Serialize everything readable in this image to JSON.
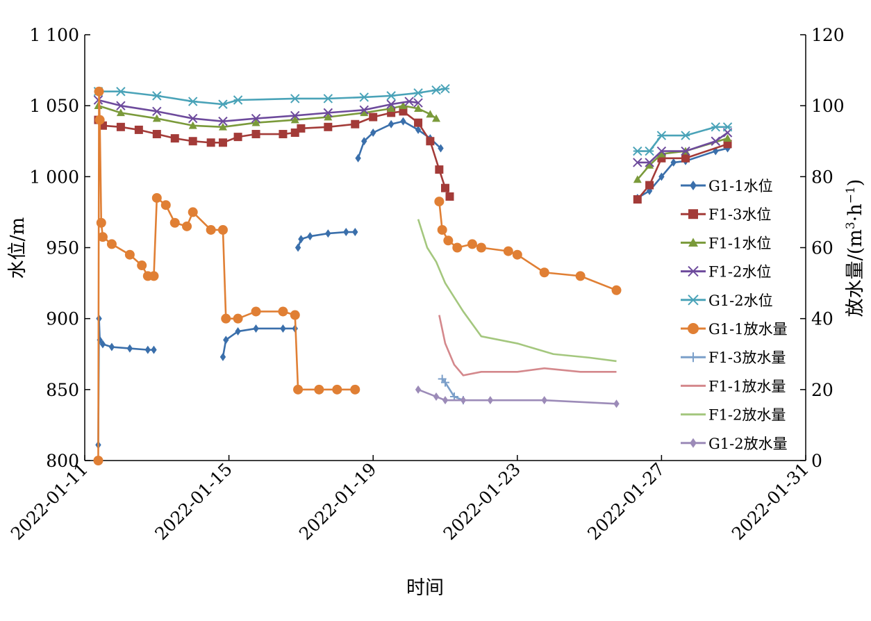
{
  "chart_data": {
    "type": "line",
    "xlabel": "时间",
    "ylabel_left": "水位/m",
    "ylabel_right_prefix": "放水量/(m",
    "ylabel_right_sup1": "3",
    "ylabel_right_mid": "·h",
    "ylabel_right_sup2": "−1",
    "ylabel_right_suffix": ")",
    "x_range": [
      "2022-01-11",
      "2022-01-31"
    ],
    "x_ticks": [
      "2022-01-11",
      "2022-01-15",
      "2022-01-19",
      "2022-01-23",
      "2022-01-27",
      "2022-01-31"
    ],
    "ylim_left": [
      800,
      1100
    ],
    "ylim_right": [
      0,
      120
    ],
    "y_ticks_left": [
      {
        "value": 800,
        "label": "800"
      },
      {
        "value": 850,
        "label": "850"
      },
      {
        "value": 900,
        "label": "900"
      },
      {
        "value": 950,
        "label": "950"
      },
      {
        "value": 1000,
        "label": "1 000"
      },
      {
        "value": 1050,
        "label": "1 050"
      },
      {
        "value": 1100,
        "label": "1 100"
      }
    ],
    "y_ticks_right": [
      {
        "value": 0,
        "label": "0"
      },
      {
        "value": 20,
        "label": "20"
      },
      {
        "value": 40,
        "label": "40"
      },
      {
        "value": 60,
        "label": "60"
      },
      {
        "value": 80,
        "label": "80"
      },
      {
        "value": 100,
        "label": "100"
      },
      {
        "value": 120,
        "label": "120"
      }
    ],
    "grid": false,
    "legend_position": "right",
    "series": [
      {
        "name": "G1-1水位",
        "axis": "left",
        "color": "#3a6fab",
        "marker": "diamond",
        "segments": [
          [
            [
              "2022-01-11 09:00",
              811
            ],
            [
              "2022-01-11 09:30",
              900
            ],
            [
              "2022-01-11 10:00",
              885
            ],
            [
              "2022-01-11 12:00",
              882
            ],
            [
              "2022-01-11 18:00",
              880
            ],
            [
              "2022-01-12 06:00",
              879
            ],
            [
              "2022-01-12 18:00",
              878
            ],
            [
              "2022-01-12 22:00",
              878
            ]
          ],
          [
            [
              "2022-01-14 20:00",
              873
            ],
            [
              "2022-01-14 22:00",
              885
            ],
            [
              "2022-01-15 06:00",
              891
            ],
            [
              "2022-01-15 18:00",
              893
            ],
            [
              "2022-01-16 12:00",
              893
            ],
            [
              "2022-01-16 20:00",
              893
            ]
          ],
          [
            [
              "2022-01-16 22:00",
              950
            ],
            [
              "2022-01-17 00:00",
              956
            ],
            [
              "2022-01-17 06:00",
              958
            ],
            [
              "2022-01-17 18:00",
              960
            ],
            [
              "2022-01-18 06:00",
              961
            ],
            [
              "2022-01-18 12:00",
              961
            ]
          ],
          [
            [
              "2022-01-18 14:00",
              1013
            ],
            [
              "2022-01-18 18:00",
              1025
            ],
            [
              "2022-01-19 00:00",
              1031
            ],
            [
              "2022-01-19 12:00",
              1037
            ],
            [
              "2022-01-19 20:00",
              1039
            ],
            [
              "2022-01-20 06:00",
              1033
            ],
            [
              "2022-01-20 14:00",
              1027
            ],
            [
              "2022-01-20 21:00",
              1020
            ]
          ],
          [
            [
              "2022-01-26 08:00",
              985
            ],
            [
              "2022-01-26 16:00",
              990
            ],
            [
              "2022-01-27 00:00",
              1000
            ],
            [
              "2022-01-27 08:00",
              1010
            ],
            [
              "2022-01-27 16:00",
              1011
            ],
            [
              "2022-01-28 12:00",
              1018
            ],
            [
              "2022-01-28 20:00",
              1020
            ]
          ]
        ]
      },
      {
        "name": "F1-3水位",
        "axis": "left",
        "color": "#a33b38",
        "marker": "square",
        "segments": [
          [
            [
              "2022-01-11 09:00",
              1040
            ],
            [
              "2022-01-11 12:00",
              1036
            ],
            [
              "2022-01-12 00:00",
              1035
            ],
            [
              "2022-01-12 12:00",
              1033
            ],
            [
              "2022-01-13 00:00",
              1030
            ],
            [
              "2022-01-13 12:00",
              1027
            ],
            [
              "2022-01-14 00:00",
              1025
            ],
            [
              "2022-01-14 12:00",
              1024
            ],
            [
              "2022-01-14 20:00",
              1024
            ],
            [
              "2022-01-15 06:00",
              1028
            ],
            [
              "2022-01-15 18:00",
              1030
            ],
            [
              "2022-01-16 12:00",
              1030
            ],
            [
              "2022-01-16 20:00",
              1031
            ],
            [
              "2022-01-17 00:00",
              1034
            ],
            [
              "2022-01-17 18:00",
              1035
            ],
            [
              "2022-01-18 12:00",
              1037
            ],
            [
              "2022-01-19 00:00",
              1042
            ],
            [
              "2022-01-19 12:00",
              1045
            ],
            [
              "2022-01-19 20:00",
              1046
            ],
            [
              "2022-01-20 06:00",
              1038
            ],
            [
              "2022-01-20 14:00",
              1025
            ],
            [
              "2022-01-20 20:00",
              1005
            ],
            [
              "2022-01-21 00:00",
              992
            ],
            [
              "2022-01-21 03:00",
              986
            ]
          ],
          [
            [
              "2022-01-26 08:00",
              984
            ],
            [
              "2022-01-26 16:00",
              994
            ],
            [
              "2022-01-27 00:00",
              1013
            ],
            [
              "2022-01-27 16:00",
              1013
            ],
            [
              "2022-01-28 20:00",
              1023
            ]
          ]
        ]
      },
      {
        "name": "F1-1水位",
        "axis": "left",
        "color": "#7a9a3a",
        "marker": "triangle",
        "segments": [
          [
            [
              "2022-01-11 09:00",
              1050
            ],
            [
              "2022-01-12 00:00",
              1045
            ],
            [
              "2022-01-13 00:00",
              1041
            ],
            [
              "2022-01-14 00:00",
              1036
            ],
            [
              "2022-01-14 20:00",
              1035
            ],
            [
              "2022-01-15 18:00",
              1038
            ],
            [
              "2022-01-16 20:00",
              1040
            ],
            [
              "2022-01-17 18:00",
              1042
            ],
            [
              "2022-01-18 18:00",
              1045
            ],
            [
              "2022-01-19 12:00",
              1048
            ],
            [
              "2022-01-19 20:00",
              1050
            ],
            [
              "2022-01-20 06:00",
              1048
            ],
            [
              "2022-01-20 14:00",
              1044
            ],
            [
              "2022-01-20 18:00",
              1041
            ]
          ],
          [
            [
              "2022-01-26 08:00",
              998
            ],
            [
              "2022-01-26 16:00",
              1008
            ],
            [
              "2022-01-27 00:00",
              1016
            ],
            [
              "2022-01-27 16:00",
              1018
            ],
            [
              "2022-01-28 20:00",
              1027
            ]
          ]
        ]
      },
      {
        "name": "F1-2水位",
        "axis": "left",
        "color": "#6d4a9c",
        "marker": "x",
        "segments": [
          [
            [
              "2022-01-11 09:00",
              1054
            ],
            [
              "2022-01-12 00:00",
              1050
            ],
            [
              "2022-01-13 00:00",
              1046
            ],
            [
              "2022-01-14 00:00",
              1041
            ],
            [
              "2022-01-14 20:00",
              1039
            ],
            [
              "2022-01-15 18:00",
              1041
            ],
            [
              "2022-01-16 20:00",
              1043
            ],
            [
              "2022-01-17 18:00",
              1045
            ],
            [
              "2022-01-18 18:00",
              1047
            ],
            [
              "2022-01-19 12:00",
              1051
            ],
            [
              "2022-01-20 00:00",
              1053
            ],
            [
              "2022-01-20 06:00",
              1052
            ]
          ],
          [
            [
              "2022-01-26 08:00",
              1010
            ],
            [
              "2022-01-26 16:00",
              1010
            ],
            [
              "2022-01-27 00:00",
              1018
            ],
            [
              "2022-01-27 16:00",
              1018
            ],
            [
              "2022-01-28 12:00",
              1025
            ],
            [
              "2022-01-28 20:00",
              1031
            ]
          ]
        ]
      },
      {
        "name": "G1-2水位",
        "axis": "left",
        "color": "#4aa3b8",
        "marker": "asterisk",
        "segments": [
          [
            [
              "2022-01-11 09:00",
              1060
            ],
            [
              "2022-01-12 00:00",
              1060
            ],
            [
              "2022-01-13 00:00",
              1057
            ],
            [
              "2022-01-14 00:00",
              1053
            ],
            [
              "2022-01-14 20:00",
              1051
            ],
            [
              "2022-01-15 06:00",
              1054
            ],
            [
              "2022-01-16 20:00",
              1055
            ],
            [
              "2022-01-17 18:00",
              1055
            ],
            [
              "2022-01-18 18:00",
              1056
            ],
            [
              "2022-01-19 12:00",
              1057
            ],
            [
              "2022-01-20 06:00",
              1059
            ],
            [
              "2022-01-20 18:00",
              1061
            ],
            [
              "2022-01-21 00:00",
              1062
            ]
          ],
          [
            [
              "2022-01-26 08:00",
              1018
            ],
            [
              "2022-01-26 16:00",
              1018
            ],
            [
              "2022-01-27 00:00",
              1029
            ],
            [
              "2022-01-27 16:00",
              1029
            ],
            [
              "2022-01-28 12:00",
              1035
            ],
            [
              "2022-01-28 20:00",
              1035
            ]
          ]
        ]
      },
      {
        "name": "G1-1放水量",
        "axis": "right",
        "color": "#e07f34",
        "marker": "circle",
        "segments": [
          [
            [
              "2022-01-11 09:00",
              0
            ],
            [
              "2022-01-11 09:30",
              104
            ],
            [
              "2022-01-11 10:00",
              96
            ],
            [
              "2022-01-11 11:00",
              67
            ],
            [
              "2022-01-11 12:00",
              63
            ],
            [
              "2022-01-11 18:00",
              61
            ],
            [
              "2022-01-12 06:00",
              58
            ],
            [
              "2022-01-12 14:00",
              55
            ],
            [
              "2022-01-12 18:00",
              52
            ],
            [
              "2022-01-12 22:00",
              52
            ],
            [
              "2022-01-13 00:00",
              74
            ],
            [
              "2022-01-13 06:00",
              72
            ],
            [
              "2022-01-13 12:00",
              67
            ],
            [
              "2022-01-13 20:00",
              66
            ],
            [
              "2022-01-14 00:00",
              70
            ],
            [
              "2022-01-14 12:00",
              65
            ],
            [
              "2022-01-14 20:00",
              65
            ],
            [
              "2022-01-14 22:00",
              40
            ],
            [
              "2022-01-15 06:00",
              40
            ],
            [
              "2022-01-15 18:00",
              42
            ],
            [
              "2022-01-16 12:00",
              42
            ],
            [
              "2022-01-16 20:00",
              41
            ],
            [
              "2022-01-16 22:00",
              20
            ],
            [
              "2022-01-17 12:00",
              20
            ],
            [
              "2022-01-18 00:00",
              20
            ],
            [
              "2022-01-18 12:00",
              20
            ]
          ],
          [
            [
              "2022-01-20 20:00",
              73
            ],
            [
              "2022-01-20 22:00",
              65
            ],
            [
              "2022-01-21 02:00",
              62
            ],
            [
              "2022-01-21 08:00",
              60
            ],
            [
              "2022-01-21 18:00",
              61
            ],
            [
              "2022-01-22 00:00",
              60
            ],
            [
              "2022-01-22 18:00",
              59
            ],
            [
              "2022-01-23 00:00",
              58
            ],
            [
              "2022-01-23 18:00",
              53
            ],
            [
              "2022-01-24 18:00",
              52
            ],
            [
              "2022-01-25 18:00",
              48
            ]
          ]
        ]
      },
      {
        "name": "F1-3放水量",
        "axis": "right",
        "color": "#7b9fc9",
        "marker": "plus",
        "segments": [
          [
            [
              "2022-01-20 22:00",
              23
            ],
            [
              "2022-01-21 00:00",
              22
            ],
            [
              "2022-01-21 06:00",
              18
            ],
            [
              "2022-01-21 12:00",
              17
            ]
          ]
        ]
      },
      {
        "name": "F1-1放水量",
        "axis": "right",
        "color": "#d4888c",
        "marker": "none",
        "segments": [
          [
            [
              "2022-01-20 20:00",
              41
            ],
            [
              "2022-01-21 00:00",
              33
            ],
            [
              "2022-01-21 06:00",
              27
            ],
            [
              "2022-01-21 12:00",
              24
            ],
            [
              "2022-01-22 00:00",
              25
            ],
            [
              "2022-01-23 00:00",
              25
            ],
            [
              "2022-01-23 18:00",
              26
            ],
            [
              "2022-01-24 18:00",
              25
            ],
            [
              "2022-01-25 18:00",
              25
            ]
          ]
        ]
      },
      {
        "name": "F1-2放水量",
        "axis": "right",
        "color": "#a4c77e",
        "marker": "none",
        "segments": [
          [
            [
              "2022-01-20 06:00",
              68
            ],
            [
              "2022-01-20 12:00",
              60
            ],
            [
              "2022-01-20 18:00",
              56
            ],
            [
              "2022-01-21 00:00",
              50
            ],
            [
              "2022-01-21 06:00",
              46
            ],
            [
              "2022-01-21 12:00",
              42
            ],
            [
              "2022-01-22 00:00",
              35
            ],
            [
              "2022-01-23 00:00",
              33
            ],
            [
              "2022-01-24 00:00",
              30
            ],
            [
              "2022-01-25 00:00",
              29
            ],
            [
              "2022-01-25 18:00",
              28
            ]
          ]
        ]
      },
      {
        "name": "G1-2放水量",
        "axis": "right",
        "color": "#9c8bb8",
        "marker": "diamond",
        "segments": [
          [
            [
              "2022-01-20 06:00",
              20
            ],
            [
              "2022-01-20 18:00",
              18
            ],
            [
              "2022-01-21 00:00",
              17
            ],
            [
              "2022-01-21 12:00",
              17
            ],
            [
              "2022-01-22 06:00",
              17
            ],
            [
              "2022-01-23 18:00",
              17
            ],
            [
              "2022-01-25 18:00",
              16
            ]
          ]
        ]
      }
    ]
  }
}
